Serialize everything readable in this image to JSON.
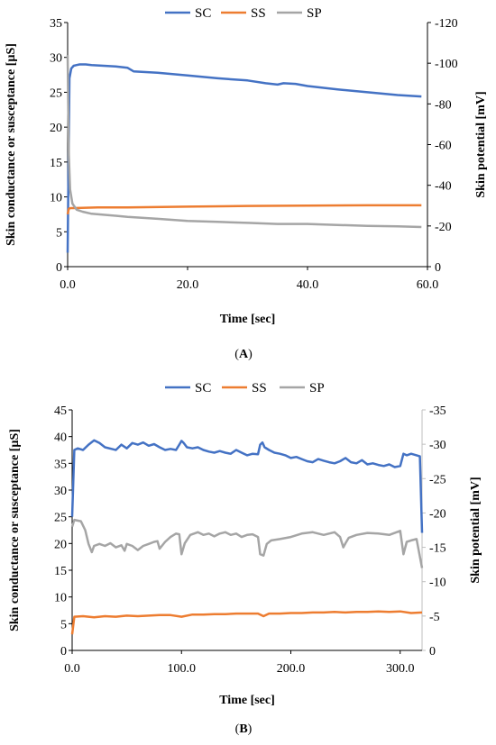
{
  "chart_data": [
    {
      "type": "line",
      "panel_label": "(A)",
      "legend_position": "top",
      "grid": false,
      "xlabel": "Time [sec]",
      "ylabel_left": "Skin conductance or susceptance [µS]",
      "ylabel_right": "Skin potential [mV]",
      "xlim": [
        0,
        60
      ],
      "ylim_left": [
        0,
        35
      ],
      "ylim_right": [
        0,
        -120
      ],
      "xticks": [
        "0.0",
        "20.0",
        "40.0",
        "60.0"
      ],
      "yticks_left": [
        "0",
        "5",
        "10",
        "15",
        "20",
        "25",
        "30",
        "35"
      ],
      "yticks_right": [
        "0",
        "-20",
        "-40",
        "-60",
        "-80",
        "-100",
        "-120"
      ],
      "series": [
        {
          "name": "SC",
          "axis": "left",
          "color": "#4472C4",
          "x": [
            0,
            0.3,
            0.6,
            1,
            1.5,
            2,
            3,
            4,
            6,
            8,
            10,
            11,
            15,
            20,
            25,
            30,
            33,
            35,
            36,
            38,
            40,
            45,
            50,
            55,
            59
          ],
          "y": [
            2,
            27,
            28.4,
            28.8,
            28.9,
            29.0,
            29.0,
            28.9,
            28.8,
            28.7,
            28.5,
            28.0,
            27.8,
            27.4,
            27.0,
            26.7,
            26.3,
            26.1,
            26.3,
            26.2,
            25.9,
            25.4,
            25.0,
            24.6,
            24.4
          ]
        },
        {
          "name": "SS",
          "axis": "left",
          "color": "#ED7D31",
          "x": [
            0,
            0.2,
            0.5,
            1,
            5,
            10,
            20,
            30,
            40,
            50,
            59
          ],
          "y": [
            7.5,
            8.3,
            8.4,
            8.4,
            8.5,
            8.5,
            8.6,
            8.7,
            8.75,
            8.8,
            8.8
          ]
        },
        {
          "name": "SP",
          "axis": "right",
          "color": "#A5A5A5",
          "x": [
            0,
            0.2,
            0.4,
            0.8,
            1.5,
            2.5,
            4,
            6,
            8,
            10,
            15,
            20,
            25,
            30,
            35,
            40,
            45,
            50,
            55,
            59
          ],
          "y": [
            -104,
            -55,
            -38,
            -31,
            -28,
            -27,
            -26,
            -25.5,
            -25,
            -24.5,
            -23.5,
            -22.5,
            -22,
            -21.5,
            -21,
            -21,
            -20.5,
            -20,
            -19.8,
            -19.5
          ]
        }
      ]
    },
    {
      "type": "line",
      "panel_label": "(B)",
      "legend_position": "top",
      "grid": false,
      "xlabel": "Time [sec]",
      "ylabel_left": "Skin conductance or susceptance [µS]",
      "ylabel_right": "Skin potential [mV]",
      "xlim": [
        0,
        320
      ],
      "ylim_left": [
        0,
        45
      ],
      "ylim_right": [
        0,
        -35
      ],
      "xticks": [
        "0.0",
        "100.0",
        "200.0",
        "300.0"
      ],
      "yticks_left": [
        "0",
        "5",
        "10",
        "15",
        "20",
        "25",
        "30",
        "35",
        "40",
        "45"
      ],
      "yticks_right": [
        "0",
        "-5",
        "-10",
        "-15",
        "-20",
        "-25",
        "-30",
        "-35"
      ],
      "series": [
        {
          "name": "SC",
          "axis": "left",
          "color": "#4472C4",
          "x": [
            0,
            2,
            5,
            10,
            15,
            20,
            25,
            30,
            40,
            45,
            50,
            55,
            60,
            65,
            70,
            75,
            80,
            85,
            90,
            95,
            98,
            100,
            102,
            105,
            110,
            115,
            120,
            125,
            130,
            135,
            140,
            145,
            150,
            155,
            160,
            165,
            170,
            172,
            174,
            176,
            180,
            185,
            190,
            195,
            200,
            205,
            210,
            215,
            220,
            225,
            230,
            235,
            240,
            245,
            250,
            255,
            260,
            265,
            270,
            275,
            280,
            285,
            290,
            295,
            300,
            303,
            306,
            310,
            315,
            318,
            320
          ],
          "y": [
            25,
            37.5,
            37.8,
            37.5,
            38.5,
            39.3,
            38.8,
            38.0,
            37.5,
            38.5,
            37.8,
            38.8,
            38.5,
            38.9,
            38.3,
            38.6,
            38.0,
            37.5,
            37.7,
            37.5,
            38.5,
            39.2,
            38.8,
            38.0,
            37.8,
            38.0,
            37.5,
            37.2,
            37.0,
            37.3,
            37.0,
            36.8,
            37.5,
            37.0,
            36.5,
            36.8,
            36.7,
            38.5,
            38.9,
            38.0,
            37.5,
            37.0,
            36.8,
            36.5,
            36.0,
            36.2,
            35.8,
            35.4,
            35.2,
            35.8,
            35.5,
            35.2,
            35.0,
            35.4,
            36.0,
            35.2,
            35.0,
            35.6,
            34.8,
            35.0,
            34.7,
            34.5,
            34.8,
            34.3,
            34.5,
            36.8,
            36.5,
            36.8,
            36.5,
            36.3,
            22
          ]
        },
        {
          "name": "SS",
          "axis": "left",
          "color": "#ED7D31",
          "x": [
            0,
            2,
            10,
            20,
            30,
            40,
            50,
            60,
            70,
            80,
            90,
            100,
            110,
            120,
            130,
            140,
            150,
            160,
            170,
            175,
            180,
            190,
            200,
            210,
            220,
            230,
            240,
            250,
            260,
            270,
            280,
            290,
            300,
            310,
            320
          ],
          "y": [
            3,
            6.3,
            6.4,
            6.2,
            6.4,
            6.3,
            6.5,
            6.4,
            6.5,
            6.6,
            6.6,
            6.3,
            6.7,
            6.7,
            6.8,
            6.8,
            6.9,
            6.9,
            6.9,
            6.4,
            6.9,
            6.9,
            7.0,
            7.0,
            7.1,
            7.1,
            7.2,
            7.1,
            7.2,
            7.2,
            7.3,
            7.2,
            7.3,
            7.0,
            7.1
          ]
        },
        {
          "name": "SP",
          "axis": "right",
          "color": "#A5A5A5",
          "x": [
            0,
            2,
            8,
            12,
            15,
            18,
            20,
            25,
            30,
            35,
            40,
            45,
            48,
            50,
            55,
            60,
            65,
            70,
            75,
            78,
            80,
            85,
            90,
            95,
            98,
            100,
            103,
            108,
            115,
            120,
            125,
            130,
            135,
            140,
            145,
            150,
            155,
            160,
            165,
            170,
            172,
            175,
            178,
            182,
            190,
            200,
            210,
            220,
            230,
            240,
            245,
            248,
            250,
            253,
            260,
            270,
            280,
            290,
            300,
            303,
            306,
            310,
            315,
            320
          ],
          "y": [
            -18,
            -19,
            -18.8,
            -17.5,
            -15.5,
            -14.3,
            -15.2,
            -15.5,
            -15.2,
            -15.6,
            -15.0,
            -15.3,
            -14.5,
            -15.5,
            -15.2,
            -14.6,
            -15.2,
            -15.5,
            -15.8,
            -15.9,
            -14.8,
            -15.8,
            -16.5,
            -17.0,
            -16.9,
            -14.0,
            -15.6,
            -16.8,
            -17.2,
            -16.8,
            -17.0,
            -16.6,
            -17.0,
            -17.2,
            -16.8,
            -17.0,
            -16.5,
            -16.8,
            -16.9,
            -16.5,
            -14.0,
            -13.8,
            -15.5,
            -16.0,
            -16.2,
            -16.5,
            -17.0,
            -17.2,
            -16.8,
            -17.2,
            -16.5,
            -15.0,
            -15.6,
            -16.4,
            -16.8,
            -17.1,
            -17.0,
            -16.8,
            -17.4,
            -14.0,
            -15.8,
            -16.0,
            -16.2,
            -12
          ]
        }
      ]
    }
  ]
}
